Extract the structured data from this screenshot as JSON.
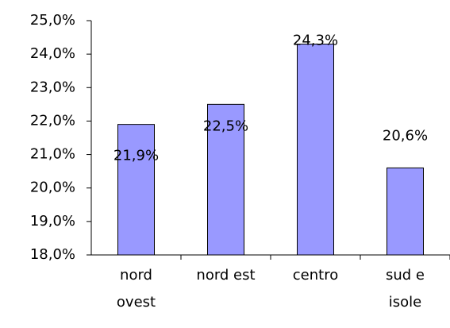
{
  "chart_data": {
    "type": "bar",
    "categories": [
      "nord ovest",
      "nord est",
      "centro",
      "sud e isole"
    ],
    "values": [
      21.9,
      22.5,
      24.3,
      20.6
    ],
    "value_labels": [
      "21,9%",
      "22,5%",
      "24,3%",
      "20,6%"
    ],
    "color": "#9999ff",
    "ylim": [
      18,
      25
    ],
    "yticks": [
      {
        "value": 18,
        "label": "18,0%"
      },
      {
        "value": 19,
        "label": "19,0%"
      },
      {
        "value": 20,
        "label": "20,0%"
      },
      {
        "value": 21,
        "label": "21,0%"
      },
      {
        "value": 22,
        "label": "22,0%"
      },
      {
        "value": 23,
        "label": "23,0%"
      },
      {
        "value": 24,
        "label": "24,0%"
      },
      {
        "value": 25,
        "label": "25,0%"
      }
    ],
    "grid": false
  }
}
